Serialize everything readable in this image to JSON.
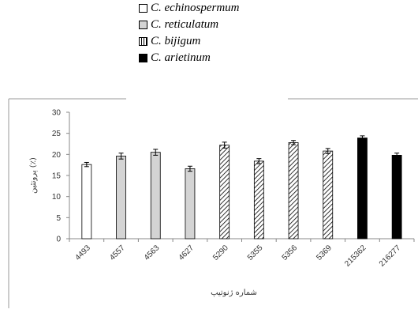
{
  "legend": {
    "items": [
      {
        "label": "C. echinospermum",
        "pattern": "white"
      },
      {
        "label": "C. reticulatum",
        "pattern": "gray"
      },
      {
        "label": "C. bijigum",
        "pattern": "hatch"
      },
      {
        "label": "C. arietinum",
        "pattern": "black"
      }
    ]
  },
  "colors": {
    "white_fill": "#ffffff",
    "gray_fill": "#d4d4d4",
    "black_fill": "#000000",
    "stroke": "#000000"
  },
  "chart_data": {
    "type": "bar",
    "categories": [
      "4493",
      "4557",
      "4563",
      "4627",
      "5290",
      "5355",
      "5356",
      "5369",
      "215362",
      "216277"
    ],
    "values": [
      17.6,
      19.6,
      20.5,
      16.6,
      22.2,
      18.4,
      22.8,
      20.8,
      23.9,
      19.8
    ],
    "errors": [
      0.5,
      0.7,
      0.7,
      0.6,
      0.7,
      0.6,
      0.5,
      0.6,
      0.5,
      0.5
    ],
    "groups": [
      "white",
      "gray",
      "gray",
      "gray",
      "hatch",
      "hatch",
      "hatch",
      "hatch",
      "black",
      "black"
    ],
    "ylabel": "پروتئین (٪)",
    "xlabel": "شماره ژنوتیپ",
    "yticks": [
      "0",
      "5",
      "10",
      "15",
      "20",
      "25",
      "30"
    ],
    "ylim": [
      0,
      30
    ],
    "grid": false
  }
}
